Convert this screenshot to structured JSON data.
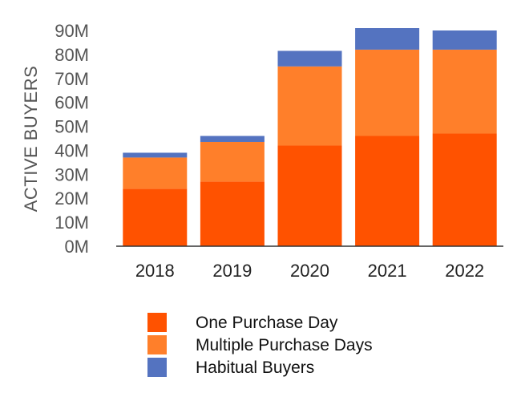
{
  "chart_data": {
    "type": "bar",
    "stacked": true,
    "categories": [
      "2018",
      "2019",
      "2020",
      "2021",
      "2022"
    ],
    "series": [
      {
        "name": "One Purchase Day",
        "color": "#ff5200",
        "values": [
          24,
          27,
          42,
          46,
          47
        ]
      },
      {
        "name": "Multiple Purchase Days",
        "color": "#ff7f2a",
        "values": [
          13,
          16.5,
          33,
          36,
          35
        ]
      },
      {
        "name": "Habitual Buyers",
        "color": "#5473c0",
        "values": [
          2,
          2.5,
          6.5,
          9,
          8
        ]
      }
    ],
    "ylabel": "ACTIVE BUYERS",
    "ylim": [
      0,
      90
    ],
    "yticks": [
      "0M",
      "10M",
      "20M",
      "30M",
      "40M",
      "50M",
      "60M",
      "70M",
      "80M",
      "90M"
    ],
    "grid": false,
    "legend_position": "bottom"
  }
}
